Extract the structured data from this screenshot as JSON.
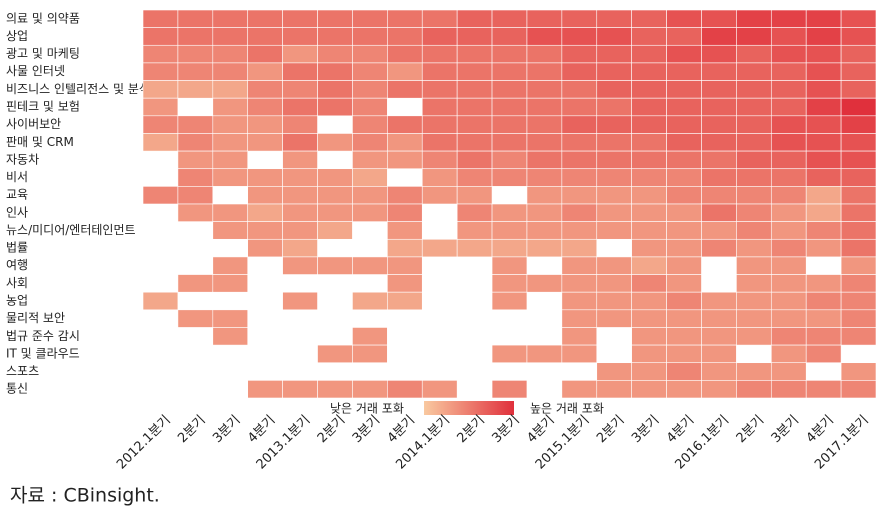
{
  "chart_data": {
    "type": "heatmap",
    "source": "자료 : CBinsight.",
    "legend_low": "낮은 거래 포화",
    "legend_high": "높은 거래 포화",
    "colors": [
      "#f9c9a0",
      "#e0303c"
    ],
    "zlim": [
      1,
      10
    ],
    "columns": [
      "2012.1분기",
      "2분기",
      "3분기",
      "4분기",
      "2013.1분기",
      "2분기",
      "3분기",
      "4분기",
      "2014.1분기",
      "2분기",
      "3분기",
      "4분기",
      "2015.1분기",
      "2분기",
      "3분기",
      "4분기",
      "2016.1분기",
      "2분기",
      "3분기",
      "4분기",
      "2017.1분기"
    ],
    "rows": [
      "의료 및 의약품",
      "상업",
      "광고 및 마케팅",
      "사물 인터넷",
      "비즈니스 인텔리전스 및 분석",
      "핀테크 및 보험",
      "사이버보안",
      "판매 및 CRM",
      "자동차",
      "비서",
      "교육",
      "인사",
      "뉴스/미디어/엔터테인먼트",
      "법률",
      "여행",
      "사회",
      "농업",
      "물리적 보안",
      "법규 준수 감시",
      "IT 및 클라우드",
      "스포츠",
      "통신"
    ],
    "values": [
      [
        6,
        6,
        6,
        6,
        6,
        6,
        6,
        6,
        6,
        7,
        7,
        7,
        7,
        7,
        7,
        8,
        8,
        9,
        9,
        9,
        8
      ],
      [
        6,
        6,
        6,
        6,
        6,
        6,
        6,
        6,
        7,
        7,
        7,
        8,
        8,
        8,
        7,
        7,
        9,
        9,
        8,
        9,
        8
      ],
      [
        5,
        5,
        5,
        6,
        4,
        5,
        5,
        6,
        6,
        6,
        6,
        6,
        7,
        7,
        7,
        8,
        8,
        7,
        8,
        8,
        7
      ],
      [
        5,
        5,
        5,
        4,
        6,
        6,
        5,
        4,
        6,
        6,
        6,
        6,
        7,
        7,
        7,
        7,
        7,
        7,
        7,
        8,
        7
      ],
      [
        3,
        3,
        3,
        5,
        5,
        6,
        5,
        6,
        6,
        6,
        6,
        6,
        6,
        7,
        7,
        7,
        7,
        7,
        7,
        8,
        7
      ],
      [
        4,
        null,
        4,
        5,
        6,
        6,
        5,
        null,
        6,
        6,
        6,
        6,
        6,
        6,
        7,
        7,
        7,
        7,
        7,
        9,
        10
      ],
      [
        5,
        5,
        4,
        4,
        5,
        null,
        5,
        6,
        6,
        6,
        6,
        6,
        7,
        7,
        7,
        7,
        7,
        7,
        8,
        8,
        9
      ],
      [
        3,
        5,
        4,
        4,
        6,
        4,
        5,
        4,
        6,
        6,
        6,
        6,
        6,
        6,
        6,
        7,
        7,
        7,
        8,
        8,
        8
      ],
      [
        null,
        4,
        4,
        null,
        4,
        null,
        4,
        4,
        5,
        6,
        5,
        6,
        6,
        6,
        6,
        6,
        6,
        7,
        7,
        8,
        8
      ],
      [
        null,
        5,
        4,
        4,
        4,
        4,
        3,
        null,
        4,
        5,
        5,
        5,
        5,
        5,
        5,
        5,
        6,
        6,
        6,
        7,
        7
      ],
      [
        5,
        5,
        null,
        4,
        4,
        4,
        4,
        5,
        4,
        4,
        null,
        4,
        4,
        4,
        4,
        5,
        5,
        5,
        5,
        3,
        6
      ],
      [
        null,
        4,
        4,
        3,
        4,
        4,
        4,
        5,
        null,
        5,
        4,
        4,
        5,
        4,
        4,
        4,
        6,
        5,
        4,
        3,
        6
      ],
      [
        null,
        null,
        4,
        4,
        4,
        3,
        null,
        4,
        null,
        4,
        4,
        4,
        4,
        4,
        4,
        4,
        4,
        5,
        4,
        5,
        6
      ],
      [
        null,
        null,
        null,
        4,
        3,
        null,
        null,
        3,
        3,
        3,
        3,
        3,
        3,
        null,
        4,
        4,
        5,
        4,
        5,
        4,
        6
      ],
      [
        null,
        null,
        4,
        null,
        4,
        4,
        4,
        4,
        null,
        null,
        4,
        null,
        4,
        4,
        3,
        4,
        null,
        4,
        4,
        null,
        4
      ],
      [
        null,
        4,
        4,
        null,
        null,
        null,
        null,
        4,
        null,
        null,
        4,
        4,
        4,
        4,
        5,
        4,
        null,
        4,
        4,
        4,
        5
      ],
      [
        3,
        null,
        null,
        null,
        4,
        null,
        3,
        3,
        null,
        null,
        4,
        null,
        4,
        4,
        4,
        5,
        4,
        4,
        4,
        5,
        5
      ],
      [
        null,
        4,
        4,
        null,
        null,
        null,
        null,
        null,
        null,
        null,
        null,
        null,
        4,
        4,
        4,
        4,
        4,
        4,
        4,
        4,
        5
      ],
      [
        null,
        null,
        4,
        null,
        null,
        null,
        4,
        null,
        null,
        null,
        null,
        null,
        4,
        null,
        4,
        4,
        4,
        4,
        5,
        5,
        5
      ],
      [
        null,
        null,
        null,
        null,
        null,
        4,
        4,
        null,
        null,
        null,
        4,
        4,
        4,
        null,
        4,
        4,
        4,
        null,
        4,
        5,
        null
      ],
      [
        null,
        null,
        null,
        null,
        null,
        null,
        null,
        null,
        null,
        null,
        null,
        null,
        null,
        4,
        4,
        5,
        4,
        4,
        4,
        null,
        4
      ],
      [
        null,
        null,
        null,
        4,
        4,
        4,
        4,
        5,
        4,
        null,
        5,
        null,
        4,
        4,
        4,
        4,
        4,
        5,
        5,
        5,
        5
      ]
    ]
  }
}
